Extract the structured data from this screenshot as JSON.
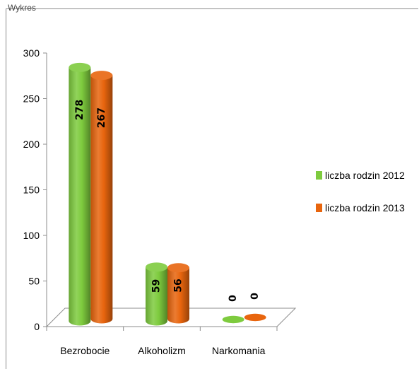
{
  "header": {
    "cutoff_text": "Wykres"
  },
  "chart_data": {
    "type": "bar",
    "title": "",
    "xlabel": "",
    "ylabel": "",
    "categories": [
      "Bezrobocie",
      "Alkoholizm",
      "Narkomania"
    ],
    "series": [
      {
        "name": "liczba rodzin 2012",
        "color": "#7ecb3e",
        "values": [
          278,
          59,
          0
        ],
        "labels": [
          "278",
          "59",
          "0"
        ]
      },
      {
        "name": "liczba rodzin 2013",
        "color": "#e8650e",
        "values": [
          267,
          56,
          0
        ],
        "labels": [
          "267",
          "56",
          "0"
        ]
      }
    ],
    "ylim": [
      0,
      300
    ],
    "yticks": [
      0,
      50,
      100,
      150,
      200,
      250,
      300
    ],
    "grid": false,
    "legend_position": "right",
    "style": "3d-cylinder"
  }
}
